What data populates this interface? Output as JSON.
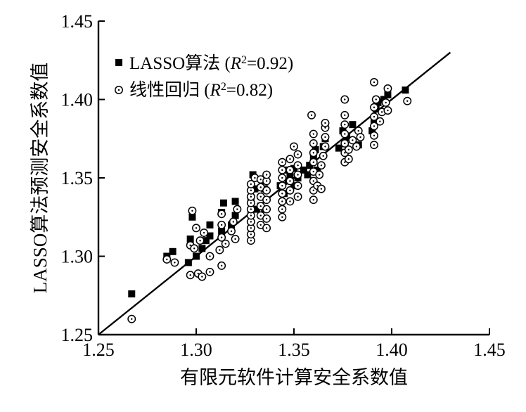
{
  "chart_data": {
    "type": "scatter",
    "title": "",
    "xlabel": "有限元软件计算安全系数值",
    "ylabel": "LASSO算法预测安全系数值",
    "xlim": [
      1.25,
      1.45
    ],
    "ylim": [
      1.25,
      1.45
    ],
    "xticks": [
      "1.25",
      "1.30",
      "1.35",
      "1.40",
      "1.45"
    ],
    "yticks": [
      "1.25",
      "1.30",
      "1.35",
      "1.40",
      "1.45"
    ],
    "legend_position": "top-left",
    "grid": false,
    "series": [
      {
        "name": "LASSO算法",
        "r2_text": "0.92",
        "marker": "filled-square",
        "color": "#000000",
        "points": [
          [
            1.267,
            1.276
          ],
          [
            1.285,
            1.3
          ],
          [
            1.288,
            1.303
          ],
          [
            1.296,
            1.296
          ],
          [
            1.297,
            1.311
          ],
          [
            1.298,
            1.325
          ],
          [
            1.3,
            1.3
          ],
          [
            1.303,
            1.305
          ],
          [
            1.305,
            1.31
          ],
          [
            1.307,
            1.313
          ],
          [
            1.307,
            1.32
          ],
          [
            1.313,
            1.316
          ],
          [
            1.313,
            1.328
          ],
          [
            1.314,
            1.334
          ],
          [
            1.318,
            1.32
          ],
          [
            1.32,
            1.326
          ],
          [
            1.32,
            1.335
          ],
          [
            1.328,
            1.328
          ],
          [
            1.328,
            1.336
          ],
          [
            1.329,
            1.352
          ],
          [
            1.33,
            1.343
          ],
          [
            1.331,
            1.33
          ],
          [
            1.333,
            1.332
          ],
          [
            1.335,
            1.33
          ],
          [
            1.335,
            1.343
          ],
          [
            1.335,
            1.348
          ],
          [
            1.343,
            1.345
          ],
          [
            1.345,
            1.34
          ],
          [
            1.345,
            1.355
          ],
          [
            1.347,
            1.348
          ],
          [
            1.348,
            1.352
          ],
          [
            1.35,
            1.345
          ],
          [
            1.35,
            1.356
          ],
          [
            1.352,
            1.35
          ],
          [
            1.355,
            1.355
          ],
          [
            1.357,
            1.352
          ],
          [
            1.358,
            1.358
          ],
          [
            1.36,
            1.363
          ],
          [
            1.361,
            1.368
          ],
          [
            1.362,
            1.355
          ],
          [
            1.365,
            1.37
          ],
          [
            1.366,
            1.375
          ],
          [
            1.373,
            1.369
          ],
          [
            1.375,
            1.38
          ],
          [
            1.376,
            1.372
          ],
          [
            1.377,
            1.376
          ],
          [
            1.38,
            1.384
          ],
          [
            1.383,
            1.371
          ],
          [
            1.39,
            1.38
          ],
          [
            1.391,
            1.386
          ],
          [
            1.392,
            1.394
          ],
          [
            1.393,
            1.398
          ],
          [
            1.396,
            1.4
          ],
          [
            1.398,
            1.403
          ],
          [
            1.407,
            1.406
          ]
        ]
      },
      {
        "name": "线性回归",
        "r2_text": "0.82",
        "marker": "open-circle-dot",
        "color": "#000000",
        "points": [
          [
            1.267,
            1.26
          ],
          [
            1.285,
            1.298
          ],
          [
            1.289,
            1.296
          ],
          [
            1.297,
            1.288
          ],
          [
            1.297,
            1.307
          ],
          [
            1.298,
            1.329
          ],
          [
            1.299,
            1.305
          ],
          [
            1.3,
            1.318
          ],
          [
            1.301,
            1.289
          ],
          [
            1.302,
            1.31
          ],
          [
            1.303,
            1.287
          ],
          [
            1.304,
            1.315
          ],
          [
            1.307,
            1.29
          ],
          [
            1.307,
            1.3
          ],
          [
            1.313,
            1.294
          ],
          [
            1.312,
            1.304
          ],
          [
            1.313,
            1.312
          ],
          [
            1.313,
            1.32
          ],
          [
            1.313,
            1.327
          ],
          [
            1.315,
            1.308
          ],
          [
            1.318,
            1.316
          ],
          [
            1.319,
            1.322
          ],
          [
            1.32,
            1.311
          ],
          [
            1.321,
            1.33
          ],
          [
            1.328,
            1.31
          ],
          [
            1.328,
            1.314
          ],
          [
            1.328,
            1.318
          ],
          [
            1.328,
            1.322
          ],
          [
            1.328,
            1.326
          ],
          [
            1.328,
            1.33
          ],
          [
            1.328,
            1.334
          ],
          [
            1.328,
            1.338
          ],
          [
            1.328,
            1.342
          ],
          [
            1.328,
            1.346
          ],
          [
            1.33,
            1.35
          ],
          [
            1.333,
            1.32
          ],
          [
            1.333,
            1.326
          ],
          [
            1.333,
            1.332
          ],
          [
            1.333,
            1.338
          ],
          [
            1.333,
            1.344
          ],
          [
            1.333,
            1.349
          ],
          [
            1.336,
            1.318
          ],
          [
            1.336,
            1.324
          ],
          [
            1.336,
            1.33
          ],
          [
            1.336,
            1.336
          ],
          [
            1.336,
            1.342
          ],
          [
            1.336,
            1.348
          ],
          [
            1.336,
            1.352
          ],
          [
            1.344,
            1.325
          ],
          [
            1.344,
            1.33
          ],
          [
            1.344,
            1.335
          ],
          [
            1.344,
            1.34
          ],
          [
            1.344,
            1.345
          ],
          [
            1.344,
            1.35
          ],
          [
            1.344,
            1.355
          ],
          [
            1.344,
            1.36
          ],
          [
            1.348,
            1.335
          ],
          [
            1.348,
            1.342
          ],
          [
            1.348,
            1.348
          ],
          [
            1.348,
            1.355
          ],
          [
            1.348,
            1.362
          ],
          [
            1.35,
            1.37
          ],
          [
            1.352,
            1.338
          ],
          [
            1.352,
            1.345
          ],
          [
            1.352,
            1.352
          ],
          [
            1.352,
            1.358
          ],
          [
            1.352,
            1.365
          ],
          [
            1.36,
            1.336
          ],
          [
            1.36,
            1.342
          ],
          [
            1.36,
            1.348
          ],
          [
            1.36,
            1.354
          ],
          [
            1.36,
            1.36
          ],
          [
            1.36,
            1.366
          ],
          [
            1.36,
            1.372
          ],
          [
            1.36,
            1.378
          ],
          [
            1.359,
            1.39
          ],
          [
            1.362,
            1.345
          ],
          [
            1.363,
            1.352
          ],
          [
            1.364,
            1.343
          ],
          [
            1.364,
            1.358
          ],
          [
            1.365,
            1.364
          ],
          [
            1.366,
            1.37
          ],
          [
            1.366,
            1.376
          ],
          [
            1.366,
            1.382
          ],
          [
            1.366,
            1.385
          ],
          [
            1.376,
            1.36
          ],
          [
            1.376,
            1.366
          ],
          [
            1.376,
            1.372
          ],
          [
            1.376,
            1.378
          ],
          [
            1.376,
            1.384
          ],
          [
            1.376,
            1.39
          ],
          [
            1.376,
            1.4
          ],
          [
            1.378,
            1.362
          ],
          [
            1.378,
            1.368
          ],
          [
            1.38,
            1.374
          ],
          [
            1.382,
            1.37
          ],
          [
            1.383,
            1.38
          ],
          [
            1.384,
            1.376
          ],
          [
            1.391,
            1.371
          ],
          [
            1.391,
            1.377
          ],
          [
            1.391,
            1.383
          ],
          [
            1.391,
            1.389
          ],
          [
            1.391,
            1.395
          ],
          [
            1.392,
            1.4
          ],
          [
            1.391,
            1.411
          ],
          [
            1.394,
            1.386
          ],
          [
            1.395,
            1.392
          ],
          [
            1.397,
            1.398
          ],
          [
            1.398,
            1.393
          ],
          [
            1.398,
            1.407
          ],
          [
            1.408,
            1.399
          ]
        ]
      }
    ],
    "fit_line": {
      "x": [
        1.25,
        1.43
      ],
      "y": [
        1.25,
        1.43
      ]
    }
  }
}
